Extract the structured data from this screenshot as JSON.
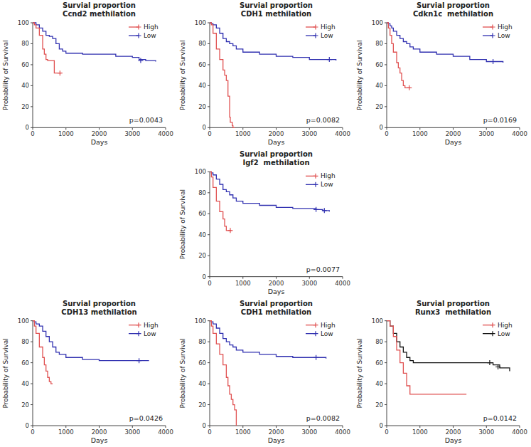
{
  "chart_data": [
    {
      "type": "line",
      "title": "Survial proportion\nCcnd2 methilation",
      "x_label": "Days",
      "y_label": "Probability of Survival",
      "annotation": "p=0.0043",
      "xlim": [
        0,
        4000
      ],
      "ylim": [
        0,
        100
      ],
      "xticks": [
        0,
        1000,
        2000,
        3000,
        4000
      ],
      "yticks": [
        0,
        20,
        40,
        60,
        80,
        100
      ],
      "legend": "upper right",
      "series": [
        {
          "name": "High",
          "color": "#e05050",
          "line_style": "step",
          "marker": "plus",
          "x": [
            0,
            50,
            100,
            200,
            300,
            350,
            400,
            450,
            500,
            550,
            600,
            650,
            700,
            750,
            800,
            850
          ],
          "values": [
            100,
            98,
            95,
            88,
            75,
            70,
            65,
            64,
            64,
            64,
            64,
            52,
            52,
            52,
            52,
            52
          ],
          "censor_x": [
            820
          ],
          "censor_y": [
            52
          ]
        },
        {
          "name": "Low",
          "color": "#3030b0",
          "line_style": "step",
          "marker": "plus",
          "x": [
            0,
            50,
            100,
            200,
            300,
            400,
            500,
            600,
            700,
            800,
            900,
            1000,
            1500,
            2000,
            2500,
            3000,
            3200,
            3400,
            3700
          ],
          "values": [
            100,
            100,
            98,
            95,
            92,
            88,
            87,
            85,
            80,
            75,
            73,
            71,
            70,
            70,
            68,
            67,
            65,
            64,
            63
          ],
          "censor_x": [
            3250
          ],
          "censor_y": [
            64
          ]
        }
      ]
    },
    {
      "type": "line",
      "title": "Survial proportion\nCDH1 methilation",
      "x_label": "Days",
      "y_label": "Probability of Survival",
      "annotation": "p=0.0082",
      "xlim": [
        0,
        4000
      ],
      "ylim": [
        0,
        100
      ],
      "xticks": [
        0,
        1000,
        2000,
        3000,
        4000
      ],
      "yticks": [
        0,
        20,
        40,
        60,
        80,
        100
      ],
      "legend": "upper right",
      "series": [
        {
          "name": "High",
          "color": "#e05050",
          "line_style": "step",
          "marker": "plus",
          "x": [
            0,
            50,
            100,
            200,
            300,
            400,
            450,
            500,
            550,
            600,
            620,
            650,
            680,
            700,
            750
          ],
          "values": [
            100,
            98,
            90,
            75,
            65,
            55,
            50,
            45,
            30,
            10,
            5,
            5,
            2,
            0,
            0
          ]
        },
        {
          "name": "Low",
          "color": "#3030b0",
          "line_style": "step",
          "marker": "plus",
          "x": [
            0,
            50,
            100,
            200,
            300,
            400,
            500,
            600,
            700,
            800,
            1000,
            1500,
            2000,
            2500,
            3000,
            3500,
            3800
          ],
          "values": [
            100,
            99,
            98,
            95,
            90,
            85,
            82,
            80,
            78,
            75,
            72,
            70,
            68,
            67,
            65,
            65,
            64
          ],
          "censor_x": [
            3600
          ],
          "censor_y": [
            65
          ]
        }
      ]
    },
    {
      "type": "line",
      "title": "Survial proportion\nCdkn1c  methilation",
      "x_label": "Days",
      "y_label": "Probability of Survival",
      "annotation": "p=0.0169",
      "xlim": [
        0,
        4000
      ],
      "ylim": [
        0,
        100
      ],
      "xticks": [
        0,
        1000,
        2000,
        3000,
        4000
      ],
      "yticks": [
        0,
        20,
        40,
        60,
        80,
        100
      ],
      "legend": "upper right",
      "series": [
        {
          "name": "High",
          "color": "#e05050",
          "line_style": "step",
          "marker": "plus",
          "x": [
            0,
            50,
            100,
            150,
            200,
            300,
            350,
            400,
            450,
            500,
            550,
            600,
            650,
            700
          ],
          "values": [
            100,
            95,
            88,
            80,
            72,
            62,
            57,
            52,
            45,
            40,
            38,
            38,
            38,
            38
          ],
          "censor_x": [
            680
          ],
          "censor_y": [
            38
          ]
        },
        {
          "name": "Low",
          "color": "#3030b0",
          "line_style": "step",
          "marker": "plus",
          "x": [
            0,
            50,
            100,
            150,
            200,
            300,
            400,
            500,
            600,
            700,
            800,
            1000,
            1500,
            2000,
            2500,
            3000,
            3500
          ],
          "values": [
            100,
            99,
            97,
            95,
            92,
            88,
            85,
            82,
            80,
            77,
            75,
            72,
            70,
            68,
            65,
            63,
            62
          ],
          "censor_x": [
            3200
          ],
          "censor_y": [
            63
          ]
        }
      ]
    },
    {
      "type": "line",
      "title": "Survial proportion\nIgf2  methilation",
      "x_label": "Days",
      "y_label": "Probability of Survival",
      "annotation": "p=0.0077",
      "xlim": [
        0,
        4000
      ],
      "ylim": [
        0,
        100
      ],
      "xticks": [
        0,
        1000,
        2000,
        3000,
        4000
      ],
      "yticks": [
        0,
        20,
        40,
        60,
        80,
        100
      ],
      "legend": "upper right",
      "series": [
        {
          "name": "High",
          "color": "#e05050",
          "line_style": "step",
          "marker": "plus",
          "x": [
            0,
            50,
            100,
            200,
            300,
            400,
            450,
            500,
            550,
            600,
            650
          ],
          "values": [
            100,
            95,
            85,
            72,
            62,
            55,
            48,
            44,
            44,
            44,
            44
          ],
          "censor_x": [
            620
          ],
          "censor_y": [
            44
          ]
        },
        {
          "name": "Low",
          "color": "#3030b0",
          "line_style": "step",
          "marker": "plus",
          "x": [
            0,
            50,
            100,
            200,
            300,
            400,
            500,
            600,
            700,
            800,
            1000,
            1500,
            2000,
            2500,
            3000,
            3200,
            3400,
            3600
          ],
          "values": [
            100,
            99,
            97,
            93,
            88,
            83,
            81,
            78,
            75,
            72,
            70,
            68,
            66,
            65,
            65,
            64,
            63,
            62
          ],
          "censor_x": [
            3200,
            3450
          ],
          "censor_y": [
            64,
            63
          ]
        }
      ]
    },
    {
      "type": "line",
      "title": "Survial proportion\nCDH13 methilation",
      "x_label": "Days",
      "y_label": "Probability of Survival",
      "annotation": "p=0.0426",
      "xlim": [
        0,
        4000
      ],
      "ylim": [
        0,
        100
      ],
      "xticks": [
        0,
        1000,
        2000,
        3000,
        4000
      ],
      "yticks": [
        0,
        20,
        40,
        60,
        80,
        100
      ],
      "legend": "upper right",
      "series": [
        {
          "name": "High",
          "color": "#e05050",
          "line_style": "step",
          "marker": "plus",
          "x": [
            0,
            50,
            100,
            200,
            300,
            350,
            400,
            450,
            500,
            550,
            600
          ],
          "values": [
            100,
            95,
            88,
            75,
            65,
            58,
            52,
            46,
            42,
            40,
            40
          ]
        },
        {
          "name": "Low",
          "color": "#3030b0",
          "line_style": "step",
          "marker": "plus",
          "x": [
            0,
            50,
            100,
            200,
            300,
            400,
            500,
            600,
            700,
            800,
            1000,
            1500,
            2000,
            2500,
            3000,
            3500
          ],
          "values": [
            100,
            99,
            97,
            95,
            90,
            85,
            80,
            75,
            70,
            68,
            65,
            63,
            62,
            62,
            62,
            62
          ],
          "censor_x": [
            3200
          ],
          "censor_y": [
            62
          ]
        }
      ]
    },
    {
      "type": "line",
      "title": "Survial proportion\nCDH1 methilation",
      "x_label": "Days",
      "y_label": "Probability of Survival",
      "annotation": "p=0.0082",
      "xlim": [
        0,
        4000
      ],
      "ylim": [
        0,
        100
      ],
      "xticks": [
        0,
        1000,
        2000,
        3000,
        4000
      ],
      "yticks": [
        0,
        20,
        40,
        60,
        80,
        100
      ],
      "legend": "upper right",
      "series": [
        {
          "name": "High",
          "color": "#e05050",
          "line_style": "step",
          "marker": "plus",
          "x": [
            0,
            50,
            100,
            200,
            300,
            400,
            500,
            550,
            600,
            650,
            700,
            750,
            800
          ],
          "values": [
            100,
            95,
            88,
            78,
            68,
            58,
            46,
            38,
            30,
            25,
            20,
            15,
            0
          ]
        },
        {
          "name": "Low",
          "color": "#3030b0",
          "line_style": "step",
          "marker": "plus",
          "x": [
            0,
            50,
            100,
            200,
            300,
            400,
            500,
            600,
            700,
            800,
            1000,
            1500,
            2000,
            2500,
            3000,
            3500
          ],
          "values": [
            100,
            99,
            97,
            93,
            88,
            83,
            80,
            77,
            75,
            72,
            70,
            68,
            66,
            65,
            65,
            64
          ],
          "censor_x": [
            3200
          ],
          "censor_y": [
            65
          ]
        }
      ]
    },
    {
      "type": "line",
      "title": "Survial proportion\nRunx3  methilation",
      "x_label": "Days",
      "y_label": "Probability of Survival",
      "annotation": "p=0.0142",
      "xlim": [
        0,
        4000
      ],
      "ylim": [
        0,
        100
      ],
      "xticks": [
        0,
        1000,
        2000,
        3000,
        4000
      ],
      "yticks": [
        0,
        20,
        40,
        60,
        80,
        100
      ],
      "legend": "upper right",
      "series": [
        {
          "name": "High",
          "color": "#e05050",
          "line_style": "step",
          "marker": "plus",
          "x": [
            0,
            100,
            200,
            300,
            400,
            500,
            600,
            700,
            800,
            1000,
            2400
          ],
          "values": [
            100,
            95,
            85,
            72,
            60,
            50,
            38,
            30,
            30,
            30,
            30
          ]
        },
        {
          "name": "Low",
          "color": "#111111",
          "line_style": "step",
          "marker": "plus",
          "x": [
            0,
            100,
            200,
            300,
            400,
            500,
            600,
            700,
            800,
            1000,
            1500,
            2000,
            2500,
            3000,
            3200,
            3400,
            3700
          ],
          "values": [
            100,
            95,
            88,
            80,
            75,
            70,
            65,
            62,
            60,
            60,
            60,
            60,
            60,
            60,
            58,
            55,
            52
          ],
          "censor_x": [
            3100,
            3350
          ],
          "censor_y": [
            60,
            56
          ]
        }
      ]
    }
  ]
}
